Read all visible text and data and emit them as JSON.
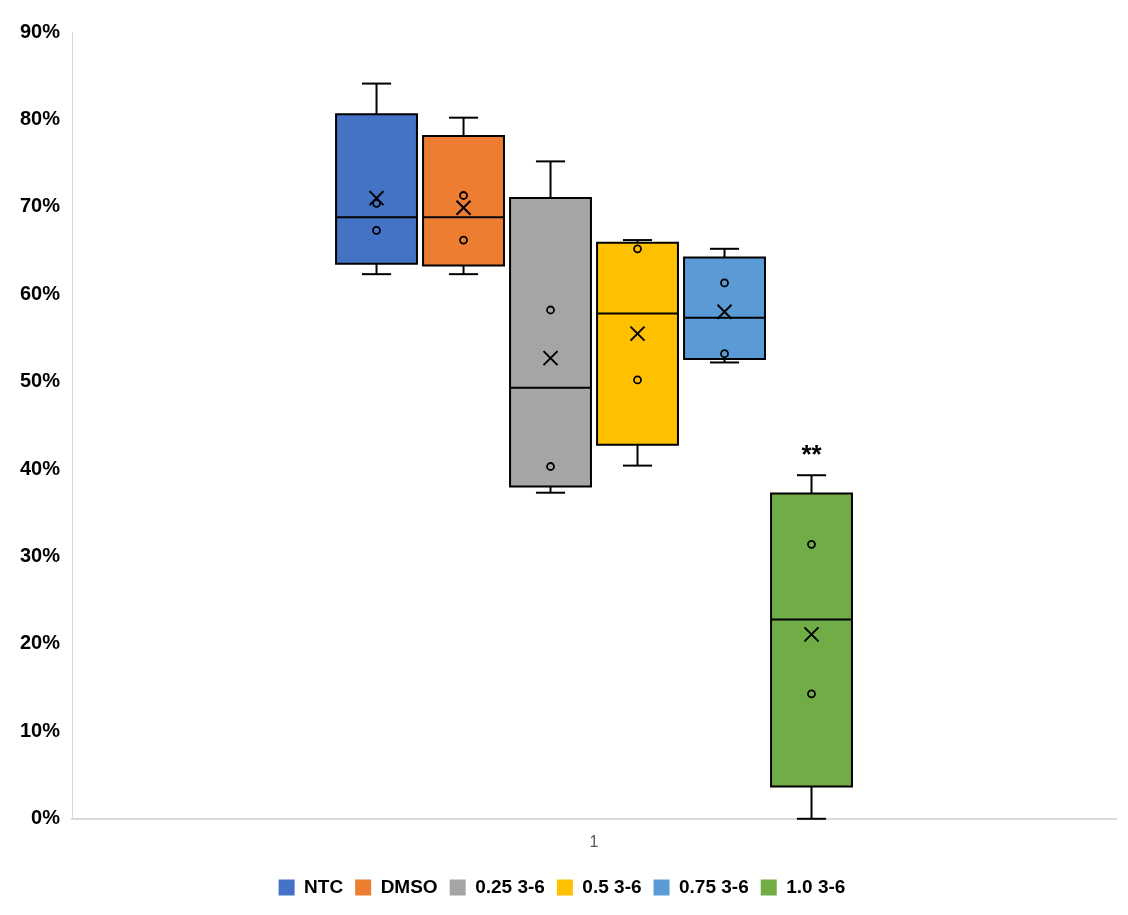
{
  "chart_data": {
    "type": "box",
    "categories": [
      "1"
    ],
    "ylim": [
      0,
      90
    ],
    "yticks": [
      {
        "value": 0,
        "label": "0%"
      },
      {
        "value": 10,
        "label": "10%"
      },
      {
        "value": 20,
        "label": "20%"
      },
      {
        "value": 30,
        "label": "30%"
      },
      {
        "value": 40,
        "label": "40%"
      },
      {
        "value": 50,
        "label": "50%"
      },
      {
        "value": 60,
        "label": "60%"
      },
      {
        "value": 70,
        "label": "70%"
      },
      {
        "value": 80,
        "label": "80%"
      },
      {
        "value": 90,
        "label": "90%"
      }
    ],
    "grid": false,
    "legend": "bottom",
    "marker": "circle",
    "annotations": [
      "**"
    ],
    "series": [
      {
        "name": "NTC",
        "color": "#4472c4",
        "boxes": [
          {
            "low": 62.3,
            "q1": 63.5,
            "median": 68.8,
            "q3": 80.6,
            "high": 84.1,
            "mean": 71,
            "outliers": [
              70.4,
              67.3
            ]
          }
        ]
      },
      {
        "name": "DMSO",
        "color": "#ed7d31",
        "boxes": [
          {
            "low": 62.3,
            "q1": 63.3,
            "median": 68.8,
            "q3": 78.1,
            "high": 80.2,
            "mean": 69.9,
            "outliers": [
              71.3,
              66.2
            ]
          }
        ]
      },
      {
        "name": "0.25 3-6",
        "color": "#a5a5a5",
        "boxes": [
          {
            "low": 37.3,
            "q1": 38,
            "median": 49.3,
            "q3": 71,
            "high": 75.2,
            "mean": 52.7,
            "outliers": [
              58.2,
              40.3
            ]
          }
        ]
      },
      {
        "name": "0.5 3-6",
        "color": "#ffc000",
        "boxes": [
          {
            "low": 40.4,
            "q1": 42.8,
            "median": 57.8,
            "q3": 65.9,
            "high": 66.2,
            "mean": 55.5,
            "outliers": [
              65.2,
              50.2
            ]
          }
        ]
      },
      {
        "name": "0.75 3-6",
        "color": "#5b9bd5",
        "boxes": [
          {
            "low": 52.2,
            "q1": 52.6,
            "median": 57.3,
            "q3": 64.2,
            "high": 65.2,
            "mean": 58,
            "outliers": [
              61.3,
              53.2
            ]
          }
        ]
      },
      {
        "name": "1.0 3-6",
        "color": "#70ad47",
        "boxes": [
          {
            "low": 0,
            "q1": 3.7,
            "median": 22.8,
            "q3": 37.2,
            "high": 39.3,
            "mean": 21.1,
            "outliers": [
              31.4,
              14.3
            ]
          }
        ]
      }
    ]
  }
}
